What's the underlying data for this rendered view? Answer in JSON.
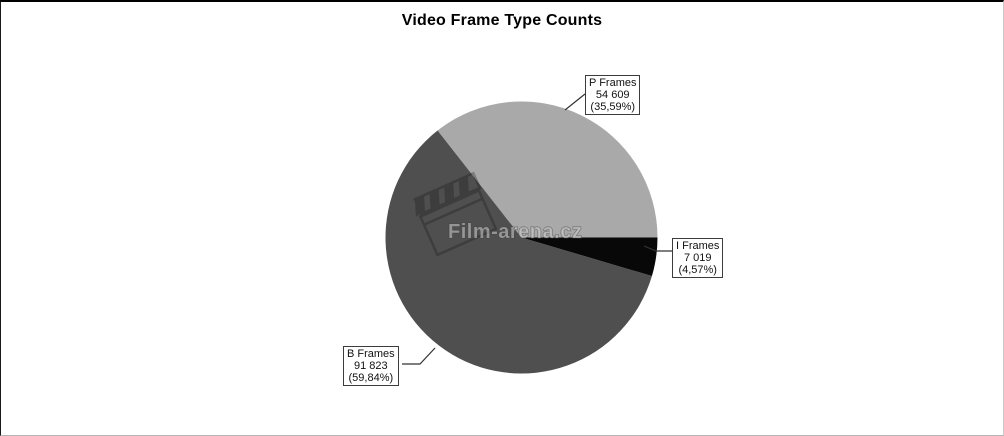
{
  "chart_data": {
    "type": "pie",
    "title": "Video Frame Type Counts",
    "start_angle_deg": 0,
    "direction": "counterclockwise",
    "legend_position": "callout-labels",
    "slices": [
      {
        "name": "P Frames",
        "value": 54609,
        "value_label": "54 609",
        "pct": 35.59,
        "pct_label": "(35,59%)",
        "color": "#a9a9a9"
      },
      {
        "name": "B Frames",
        "value": 91823,
        "value_label": "91 823",
        "pct": 59.84,
        "pct_label": "(59,84%)",
        "color": "#4f4f4f"
      },
      {
        "name": "I Frames",
        "value": 7019,
        "value_label": "7 019",
        "pct": 4.57,
        "pct_label": "(4,57%)",
        "color": "#080808"
      }
    ]
  },
  "watermark": {
    "text": "Film-arena.cz",
    "icon": "clapperboard-icon"
  },
  "colors": {
    "background": "#ffffff",
    "title_text": "#000000",
    "callout_border": "#3c3c3c",
    "leader_line": "#333333"
  }
}
